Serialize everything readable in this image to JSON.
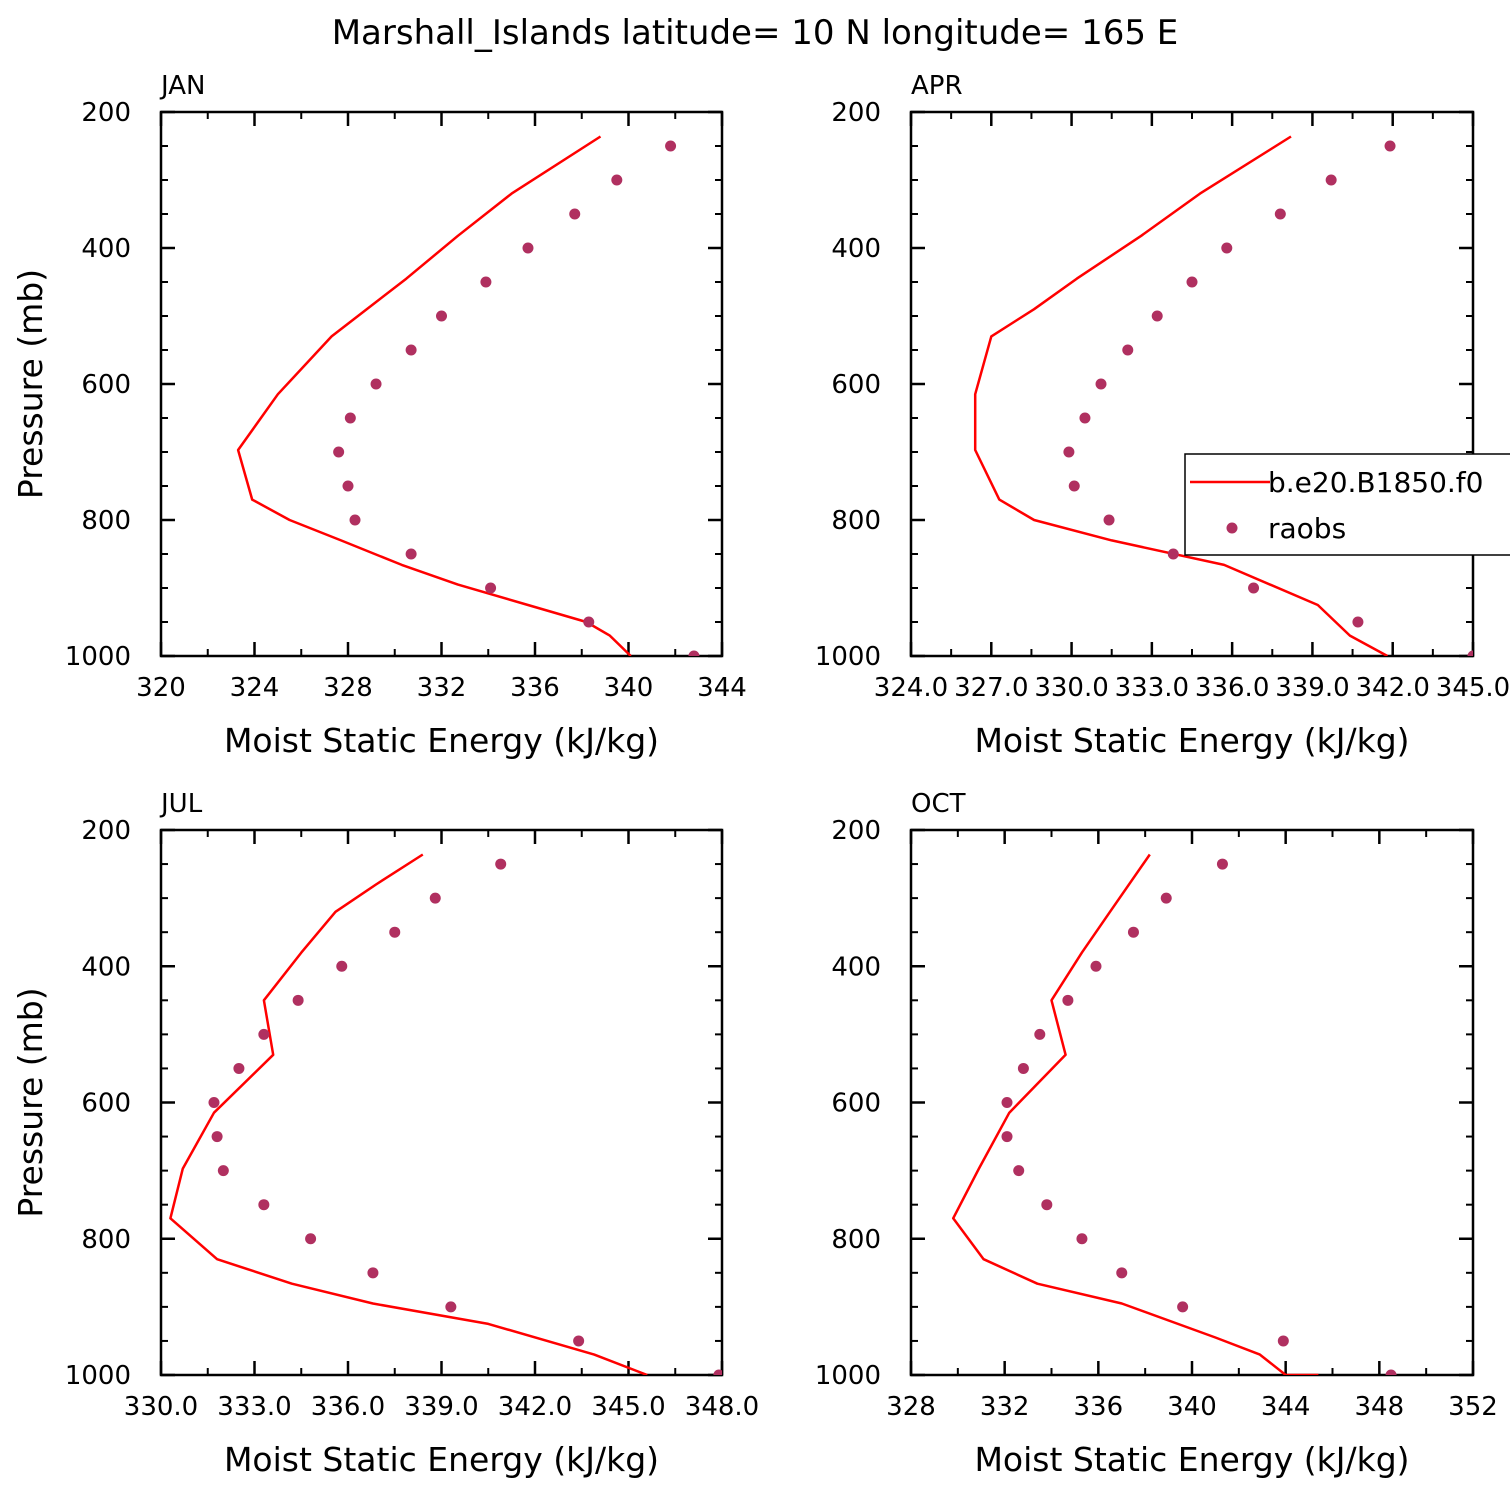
{
  "figure": {
    "title": "Marshall_Islands  latitude= 10 N longitude= 165 E"
  },
  "legend": {
    "entries": [
      {
        "label": "b.e20.B1850.f0",
        "kind": "line",
        "color": "#ff0000"
      },
      {
        "label": "raobs",
        "kind": "marker",
        "color": "#b03060"
      }
    ],
    "placement": "right, inside APR panel, clipped"
  },
  "colors": {
    "model_line": "#ff0000",
    "obs_marker": "#b03060"
  },
  "chart_data": [
    {
      "type": "line",
      "panel": "JAN",
      "xlabel": "Moist Static Energy (kJ/kg)",
      "ylabel": "Pressure (mb)",
      "xlim": [
        320,
        344
      ],
      "ylim": [
        1000,
        200
      ],
      "xticks": [
        "320",
        "324",
        "328",
        "332",
        "336",
        "340",
        "344"
      ],
      "yticks": [
        "200",
        "400",
        "600",
        "800",
        "1000"
      ],
      "series": [
        {
          "name": "b.e20.B1850.f0",
          "style": "line",
          "x": [
            338.8,
            335.0,
            332.7,
            330.5,
            328.8,
            327.3,
            325.0,
            323.3,
            323.9,
            325.5,
            327.7,
            330.3,
            332.7,
            335.7,
            338.2,
            339.2,
            340.1
          ],
          "y": [
            236,
            320,
            382,
            445,
            490,
            530,
            615,
            697,
            770,
            800,
            830,
            866,
            895,
            925,
            950,
            970,
            1000
          ]
        },
        {
          "name": "raobs",
          "style": "scatter",
          "x": [
            341.8,
            339.5,
            337.7,
            335.7,
            333.9,
            332.0,
            330.7,
            329.2,
            328.1,
            327.6,
            328.0,
            328.3,
            330.7,
            334.1,
            338.3,
            342.8
          ],
          "y": [
            250,
            300,
            350,
            400,
            450,
            500,
            550,
            600,
            650,
            700,
            750,
            800,
            850,
            900,
            950,
            1000
          ]
        }
      ]
    },
    {
      "type": "line",
      "panel": "APR",
      "xlabel": "Moist Static Energy (kJ/kg)",
      "ylabel": "",
      "xlim": [
        324.0,
        345.0
      ],
      "ylim": [
        1000,
        200
      ],
      "xticks": [
        "324.0",
        "327.0",
        "330.0",
        "333.0",
        "336.0",
        "339.0",
        "342.0",
        "345.0"
      ],
      "yticks": [
        "200",
        "400",
        "600",
        "800",
        "1000"
      ],
      "series": [
        {
          "name": "b.e20.B1850.f0",
          "style": "line",
          "x": [
            338.2,
            334.8,
            332.6,
            330.2,
            328.6,
            327.0,
            326.4,
            326.4,
            327.3,
            328.6,
            331.5,
            335.7,
            339.2,
            340.4,
            341.8
          ],
          "y": [
            236,
            320,
            382,
            445,
            490,
            530,
            615,
            697,
            770,
            800,
            830,
            866,
            925,
            970,
            1000
          ]
        },
        {
          "name": "raobs",
          "style": "scatter",
          "x": [
            341.9,
            339.7,
            337.8,
            335.8,
            334.5,
            333.2,
            332.1,
            331.1,
            330.5,
            329.9,
            330.1,
            331.4,
            333.8,
            336.8,
            340.7,
            345.0
          ],
          "y": [
            250,
            300,
            350,
            400,
            450,
            500,
            550,
            600,
            650,
            700,
            750,
            800,
            850,
            900,
            950,
            1000
          ]
        }
      ]
    },
    {
      "type": "line",
      "panel": "JUL",
      "xlabel": "Moist Static Energy (kJ/kg)",
      "ylabel": "Pressure (mb)",
      "xlim": [
        330.0,
        348.0
      ],
      "ylim": [
        1000,
        200
      ],
      "xticks": [
        "330.0",
        "333.0",
        "336.0",
        "339.0",
        "342.0",
        "345.0",
        "348.0"
      ],
      "yticks": [
        "200",
        "400",
        "600",
        "800",
        "1000"
      ],
      "series": [
        {
          "name": "b.e20.B1850.f0",
          "style": "line",
          "x": [
            338.4,
            336.9,
            335.6,
            334.5,
            333.3,
            333.6,
            331.7,
            330.7,
            330.3,
            331.8,
            334.2,
            336.8,
            340.5,
            343.9,
            345.6
          ],
          "y": [
            236,
            280,
            320,
            380,
            450,
            530,
            615,
            697,
            770,
            830,
            866,
            895,
            925,
            970,
            1000
          ]
        },
        {
          "name": "raobs",
          "style": "scatter",
          "x": [
            340.9,
            338.8,
            337.5,
            335.8,
            334.4,
            333.3,
            332.5,
            331.7,
            331.8,
            332.0,
            333.3,
            334.8,
            336.8,
            339.3,
            343.4,
            347.9
          ],
          "y": [
            250,
            300,
            350,
            400,
            450,
            500,
            550,
            600,
            650,
            700,
            750,
            800,
            850,
            900,
            950,
            1000
          ]
        }
      ]
    },
    {
      "type": "line",
      "panel": "OCT",
      "xlabel": "Moist Static Energy (kJ/kg)",
      "ylabel": "",
      "xlim": [
        328,
        352
      ],
      "ylim": [
        1000,
        200
      ],
      "xticks": [
        "328",
        "332",
        "336",
        "340",
        "344",
        "348",
        "352"
      ],
      "yticks": [
        "200",
        "400",
        "600",
        "800",
        "1000"
      ],
      "series": [
        {
          "name": "b.e20.B1850.f0",
          "style": "line",
          "x": [
            338.2,
            336.5,
            335.3,
            334.0,
            334.6,
            332.2,
            330.9,
            329.8,
            331.1,
            333.4,
            337.0,
            341.0,
            342.9,
            344.0,
            345.4
          ],
          "y": [
            236,
            320,
            380,
            450,
            530,
            615,
            697,
            770,
            830,
            866,
            895,
            945,
            970,
            1000,
            1000
          ]
        },
        {
          "name": "raobs",
          "style": "scatter",
          "x": [
            341.3,
            338.9,
            337.5,
            335.9,
            334.7,
            333.5,
            332.8,
            332.1,
            332.1,
            332.6,
            333.8,
            335.3,
            337.0,
            339.6,
            343.9,
            348.5
          ],
          "y": [
            250,
            300,
            350,
            400,
            450,
            500,
            550,
            600,
            650,
            700,
            750,
            800,
            850,
            900,
            950,
            1000
          ]
        }
      ]
    }
  ]
}
